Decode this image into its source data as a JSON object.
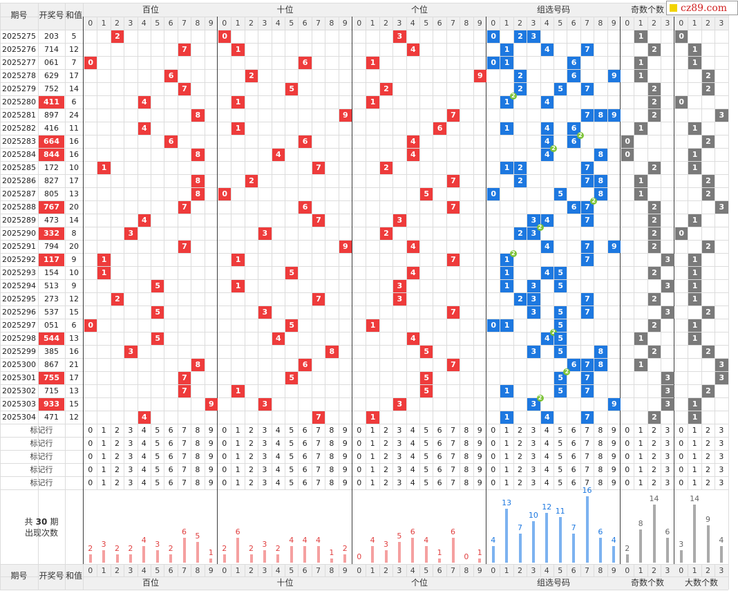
{
  "site_label": "cz89.com",
  "headers": {
    "period": "期号",
    "draw": "开奖号",
    "sum": "和值"
  },
  "groups": [
    {
      "name": "百位",
      "digits": [
        "0",
        "1",
        "2",
        "3",
        "4",
        "5",
        "6",
        "7",
        "8",
        "9"
      ]
    },
    {
      "name": "十位",
      "digits": [
        "0",
        "1",
        "2",
        "3",
        "4",
        "5",
        "6",
        "7",
        "8",
        "9"
      ]
    },
    {
      "name": "个位",
      "digits": [
        "0",
        "1",
        "2",
        "3",
        "4",
        "5",
        "6",
        "7",
        "8",
        "9"
      ]
    },
    {
      "name": "组选号码",
      "digits": [
        "0",
        "1",
        "2",
        "3",
        "4",
        "5",
        "6",
        "7",
        "8",
        "9"
      ]
    },
    {
      "name": "奇数个数",
      "digits": [
        "0",
        "1",
        "2",
        "3"
      ]
    },
    {
      "name": "大数个数",
      "digits": [
        "0",
        "1",
        "2",
        "3"
      ]
    }
  ],
  "colors": {
    "position_mark": "#ee3b3b",
    "group_mark": "#1d78e0",
    "count_mark": "#7a7a7a",
    "repeat_badge": "#7ec43a"
  },
  "rows": [
    {
      "period": "2025275",
      "number": "203",
      "sum": "5"
    },
    {
      "period": "2025276",
      "number": "714",
      "sum": "12"
    },
    {
      "period": "2025277",
      "number": "061",
      "sum": "7"
    },
    {
      "period": "2025278",
      "number": "629",
      "sum": "17"
    },
    {
      "period": "2025279",
      "number": "752",
      "sum": "14"
    },
    {
      "period": "2025280",
      "number": "411",
      "sum": "6"
    },
    {
      "period": "2025281",
      "number": "897",
      "sum": "24"
    },
    {
      "period": "2025282",
      "number": "416",
      "sum": "11"
    },
    {
      "period": "2025283",
      "number": "664",
      "sum": "16"
    },
    {
      "period": "2025284",
      "number": "844",
      "sum": "16"
    },
    {
      "period": "2025285",
      "number": "172",
      "sum": "10"
    },
    {
      "period": "2025286",
      "number": "827",
      "sum": "17"
    },
    {
      "period": "2025287",
      "number": "805",
      "sum": "13"
    },
    {
      "period": "2025288",
      "number": "767",
      "sum": "20"
    },
    {
      "period": "2025289",
      "number": "473",
      "sum": "14"
    },
    {
      "period": "2025290",
      "number": "332",
      "sum": "8"
    },
    {
      "period": "2025291",
      "number": "794",
      "sum": "20"
    },
    {
      "period": "2025292",
      "number": "117",
      "sum": "9"
    },
    {
      "period": "2025293",
      "number": "154",
      "sum": "10"
    },
    {
      "period": "2025294",
      "number": "513",
      "sum": "9"
    },
    {
      "period": "2025295",
      "number": "273",
      "sum": "12"
    },
    {
      "period": "2025296",
      "number": "537",
      "sum": "15"
    },
    {
      "period": "2025297",
      "number": "051",
      "sum": "6"
    },
    {
      "period": "2025298",
      "number": "544",
      "sum": "13"
    },
    {
      "period": "2025299",
      "number": "385",
      "sum": "16"
    },
    {
      "period": "2025300",
      "number": "867",
      "sum": "21"
    },
    {
      "period": "2025301",
      "number": "755",
      "sum": "17"
    },
    {
      "period": "2025302",
      "number": "715",
      "sum": "13"
    },
    {
      "period": "2025303",
      "number": "933",
      "sum": "15"
    },
    {
      "period": "2025304",
      "number": "471",
      "sum": "12"
    }
  ],
  "repeat_badge_label": "2",
  "marker_label": "标记行",
  "marker_rows": 5,
  "summary_label_line1_pre": "共",
  "summary_total": "30",
  "summary_label_line1_post": "期",
  "summary_label_line2": "出现次数",
  "chart_data": {
    "type": "bar",
    "title": "出现次数",
    "series": [
      {
        "name": "百位",
        "categories": [
          "0",
          "1",
          "2",
          "3",
          "4",
          "5",
          "6",
          "7",
          "8",
          "9"
        ],
        "values": [
          2,
          3,
          2,
          2,
          4,
          3,
          2,
          6,
          5,
          1
        ]
      },
      {
        "name": "十位",
        "categories": [
          "0",
          "1",
          "2",
          "3",
          "4",
          "5",
          "6",
          "7",
          "8",
          "9"
        ],
        "values": [
          2,
          6,
          2,
          3,
          2,
          4,
          4,
          4,
          1,
          2
        ]
      },
      {
        "name": "个位",
        "categories": [
          "0",
          "1",
          "2",
          "3",
          "4",
          "5",
          "6",
          "7",
          "8",
          "9"
        ],
        "values": [
          0,
          4,
          3,
          5,
          6,
          4,
          1,
          6,
          0,
          1
        ]
      },
      {
        "name": "组选号码",
        "categories": [
          "0",
          "1",
          "2",
          "3",
          "4",
          "5",
          "6",
          "7",
          "8",
          "9"
        ],
        "values": [
          4,
          13,
          7,
          10,
          12,
          11,
          7,
          16,
          6,
          4
        ]
      },
      {
        "name": "奇数个数",
        "categories": [
          "0",
          "1",
          "2",
          "3"
        ],
        "values": [
          2,
          8,
          14,
          6
        ]
      },
      {
        "name": "大数个数",
        "categories": [
          "0",
          "1",
          "2",
          "3"
        ],
        "values": [
          3,
          14,
          9,
          4
        ]
      }
    ]
  }
}
